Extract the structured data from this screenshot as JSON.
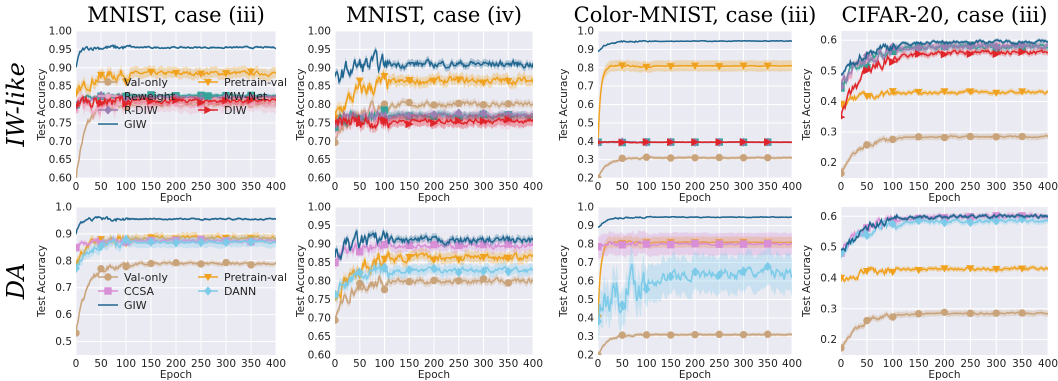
{
  "row_labels": [
    "IW-like",
    "DA"
  ],
  "column_titles": [
    "MNIST, case (iii)",
    "MNIST, case (iv)",
    "Color-MNIST, case (iii)",
    "CIFAR-20, case (iii)"
  ],
  "axis_labels": {
    "x": "Epoch",
    "y": "Test Accuracy"
  },
  "colors": {
    "Val-only": "#c9a37a",
    "Pretrain-val": "#f0a21e",
    "Reweight": "#f0a8c4",
    "MW-Net": "#35a39a",
    "R-DIW": "#9a7fb3",
    "DIW": "#e0252a",
    "GIW": "#1f6690",
    "CCSA": "#d98fd6",
    "DANN": "#7ccbe8"
  },
  "chart_data": [
    {
      "type": "line",
      "row": 0,
      "col": 0,
      "xlim": [
        0,
        400
      ],
      "ylim": [
        0.6,
        1.0
      ],
      "xticks": [
        0,
        50,
        100,
        150,
        200,
        250,
        300,
        350,
        400
      ],
      "yticks": [
        0.6,
        0.65,
        0.7,
        0.75,
        0.8,
        0.85,
        0.9,
        0.95,
        1.0
      ],
      "ytick_labels": [
        "0.60",
        "0.65",
        "0.70",
        "0.75",
        "0.80",
        "0.85",
        "0.90",
        "0.95",
        "1.00"
      ],
      "legend": {
        "placement": "bottom-center",
        "ncol": 2,
        "entries": [
          "Val-only",
          "Pretrain-val",
          "Reweight",
          "MW-Net",
          "R-DIW",
          "DIW",
          "GIW"
        ]
      },
      "series": [
        {
          "name": "Val-only",
          "final": 0.8,
          "start": 0.6,
          "rise": 40,
          "band": 0.008,
          "noise": 0.01
        },
        {
          "name": "Pretrain-val",
          "final": 0.885,
          "start": 0.82,
          "rise": 60,
          "band": 0.015,
          "noise": 0.012
        },
        {
          "name": "Reweight",
          "final": 0.8,
          "start": 0.78,
          "rise": 10,
          "band": 0.02,
          "noise": 0.015
        },
        {
          "name": "MW-Net",
          "final": 0.825,
          "start": 0.8,
          "rise": 40,
          "band": 0.005,
          "noise": 0.004
        },
        {
          "name": "R-DIW",
          "final": 0.82,
          "start": 0.8,
          "rise": 40,
          "band": 0.005,
          "noise": 0.005
        },
        {
          "name": "DIW",
          "final": 0.81,
          "start": 0.8,
          "rise": 10,
          "band": 0.01,
          "noise": 0.012
        },
        {
          "name": "GIW",
          "final": 0.955,
          "start": 0.9,
          "rise": 15,
          "band": 0.003,
          "noise": 0.005
        }
      ]
    },
    {
      "type": "line",
      "row": 0,
      "col": 1,
      "xlim": [
        0,
        400
      ],
      "ylim": [
        0.6,
        1.0
      ],
      "xticks": [
        0,
        50,
        100,
        150,
        200,
        250,
        300,
        350,
        400
      ],
      "yticks": [
        0.6,
        0.65,
        0.7,
        0.75,
        0.8,
        0.85,
        0.9,
        0.95,
        1.0
      ],
      "ytick_labels": [
        "0.60",
        "0.65",
        "0.70",
        "0.75",
        "0.80",
        "0.85",
        "0.90",
        "0.95",
        "1.00"
      ],
      "series": [
        {
          "name": "Val-only",
          "final": 0.8,
          "start": 0.7,
          "rise": 60,
          "band": 0.01,
          "noise": 0.015
        },
        {
          "name": "Pretrain-val",
          "final": 0.865,
          "start": 0.76,
          "rise": 90,
          "band": 0.015,
          "noise": 0.02
        },
        {
          "name": "Reweight",
          "final": 0.76,
          "start": 0.74,
          "rise": 30,
          "band": 0.02,
          "noise": 0.015
        },
        {
          "name": "MW-Net",
          "final": 0.77,
          "start": 0.74,
          "rise": 30,
          "band": 0.01,
          "noise": 0.012
        },
        {
          "name": "R-DIW",
          "final": 0.77,
          "start": 0.74,
          "rise": 30,
          "band": 0.01,
          "noise": 0.012
        },
        {
          "name": "DIW",
          "final": 0.755,
          "start": 0.74,
          "rise": 30,
          "band": 0.015,
          "noise": 0.015
        },
        {
          "name": "GIW",
          "final": 0.91,
          "start": 0.86,
          "rise": 50,
          "band": 0.01,
          "noise": 0.02
        }
      ]
    },
    {
      "type": "line",
      "row": 0,
      "col": 2,
      "xlim": [
        0,
        400
      ],
      "ylim": [
        0.2,
        1.0
      ],
      "xticks": [
        0,
        50,
        100,
        150,
        200,
        250,
        300,
        350,
        400
      ],
      "yticks": [
        0.2,
        0.3,
        0.4,
        0.5,
        0.6,
        0.7,
        0.8,
        0.9,
        1.0
      ],
      "ytick_labels": [
        "0.2",
        "0.3",
        "0.4",
        "0.5",
        "0.6",
        "0.7",
        "0.8",
        "0.9",
        "1.0"
      ],
      "series": [
        {
          "name": "Val-only",
          "final": 0.31,
          "start": 0.2,
          "rise": 40,
          "band": 0.01,
          "noise": 0.004
        },
        {
          "name": "Pretrain-val",
          "final": 0.81,
          "start": 0.4,
          "rise": 12,
          "band": 0.03,
          "noise": 0.005
        },
        {
          "name": "Reweight",
          "final": 0.395,
          "start": 0.395,
          "rise": 5,
          "band": 0.005,
          "noise": 0.002
        },
        {
          "name": "MW-Net",
          "final": 0.395,
          "start": 0.395,
          "rise": 5,
          "band": 0.005,
          "noise": 0.002
        },
        {
          "name": "R-DIW",
          "final": 0.395,
          "start": 0.395,
          "rise": 5,
          "band": 0.005,
          "noise": 0.002
        },
        {
          "name": "DIW",
          "final": 0.395,
          "start": 0.395,
          "rise": 5,
          "band": 0.005,
          "noise": 0.002
        },
        {
          "name": "GIW",
          "final": 0.945,
          "start": 0.89,
          "rise": 40,
          "band": 0.004,
          "noise": 0.004
        }
      ]
    },
    {
      "type": "line",
      "row": 0,
      "col": 3,
      "xlim": [
        0,
        400
      ],
      "ylim": [
        0.15,
        0.63
      ],
      "xticks": [
        0,
        50,
        100,
        150,
        200,
        250,
        300,
        350,
        400
      ],
      "yticks": [
        0.2,
        0.3,
        0.4,
        0.5,
        0.6
      ],
      "ytick_labels": [
        "0.2",
        "0.3",
        "0.4",
        "0.5",
        "0.6"
      ],
      "series": [
        {
          "name": "Val-only",
          "final": 0.285,
          "start": 0.17,
          "rise": 80,
          "band": 0.01,
          "noise": 0.006
        },
        {
          "name": "Pretrain-val",
          "final": 0.43,
          "start": 0.39,
          "rise": 100,
          "band": 0.008,
          "noise": 0.01
        },
        {
          "name": "Reweight",
          "final": 0.585,
          "start": 0.45,
          "rise": 100,
          "band": 0.01,
          "noise": 0.015
        },
        {
          "name": "MW-Net",
          "final": 0.58,
          "start": 0.45,
          "rise": 100,
          "band": 0.01,
          "noise": 0.015
        },
        {
          "name": "R-DIW",
          "final": 0.58,
          "start": 0.45,
          "rise": 100,
          "band": 0.01,
          "noise": 0.015
        },
        {
          "name": "DIW",
          "final": 0.56,
          "start": 0.35,
          "rise": 100,
          "band": 0.01,
          "noise": 0.015
        },
        {
          "name": "GIW",
          "final": 0.595,
          "start": 0.48,
          "rise": 100,
          "band": 0.006,
          "noise": 0.012
        }
      ]
    },
    {
      "type": "line",
      "row": 1,
      "col": 0,
      "xlim": [
        0,
        400
      ],
      "ylim": [
        0.45,
        1.0
      ],
      "xticks": [
        0,
        50,
        100,
        150,
        200,
        250,
        300,
        350,
        400
      ],
      "yticks": [
        0.5,
        0.6,
        0.7,
        0.8,
        0.9,
        1.0
      ],
      "ytick_labels": [
        "0.5",
        "0.6",
        "0.7",
        "0.8",
        "0.9",
        "1.0"
      ],
      "legend": {
        "placement": "bottom-center",
        "ncol": 2,
        "entries": [
          "Val-only",
          "Pretrain-val",
          "CCSA",
          "DANN",
          "GIW"
        ]
      },
      "series": [
        {
          "name": "Val-only",
          "final": 0.79,
          "start": 0.54,
          "rise": 50,
          "band": 0.01,
          "noise": 0.01
        },
        {
          "name": "Pretrain-val",
          "final": 0.885,
          "start": 0.8,
          "rise": 60,
          "band": 0.015,
          "noise": 0.015
        },
        {
          "name": "CCSA",
          "final": 0.875,
          "start": 0.85,
          "rise": 30,
          "band": 0.01,
          "noise": 0.01
        },
        {
          "name": "DANN",
          "final": 0.87,
          "start": 0.78,
          "rise": 60,
          "band": 0.02,
          "noise": 0.01
        },
        {
          "name": "GIW",
          "final": 0.955,
          "start": 0.9,
          "rise": 15,
          "band": 0.004,
          "noise": 0.006
        }
      ]
    },
    {
      "type": "line",
      "row": 1,
      "col": 1,
      "xlim": [
        0,
        400
      ],
      "ylim": [
        0.6,
        1.0
      ],
      "xticks": [
        0,
        50,
        100,
        150,
        200,
        250,
        300,
        350,
        400
      ],
      "yticks": [
        0.6,
        0.65,
        0.7,
        0.75,
        0.8,
        0.85,
        0.9,
        0.95,
        1.0
      ],
      "ytick_labels": [
        "0.60",
        "0.65",
        "0.70",
        "0.75",
        "0.80",
        "0.85",
        "0.90",
        "0.95",
        "1.00"
      ],
      "series": [
        {
          "name": "Val-only",
          "final": 0.8,
          "start": 0.7,
          "rise": 60,
          "band": 0.01,
          "noise": 0.015
        },
        {
          "name": "Pretrain-val",
          "final": 0.865,
          "start": 0.76,
          "rise": 90,
          "band": 0.015,
          "noise": 0.02
        },
        {
          "name": "CCSA",
          "final": 0.895,
          "start": 0.85,
          "rise": 40,
          "band": 0.015,
          "noise": 0.015
        },
        {
          "name": "DANN",
          "final": 0.83,
          "start": 0.76,
          "rise": 80,
          "band": 0.015,
          "noise": 0.015
        },
        {
          "name": "GIW",
          "final": 0.91,
          "start": 0.86,
          "rise": 50,
          "band": 0.01,
          "noise": 0.02
        }
      ]
    },
    {
      "type": "line",
      "row": 1,
      "col": 2,
      "xlim": [
        0,
        400
      ],
      "ylim": [
        0.2,
        1.0
      ],
      "xticks": [
        0,
        50,
        100,
        150,
        200,
        250,
        300,
        350,
        400
      ],
      "yticks": [
        0.2,
        0.3,
        0.4,
        0.5,
        0.6,
        0.7,
        0.8,
        0.9,
        1.0
      ],
      "ytick_labels": [
        "0.2",
        "0.3",
        "0.4",
        "0.5",
        "0.6",
        "0.7",
        "0.8",
        "0.9",
        "1.0"
      ],
      "series": [
        {
          "name": "Val-only",
          "final": 0.31,
          "start": 0.2,
          "rise": 40,
          "band": 0.01,
          "noise": 0.004
        },
        {
          "name": "Pretrain-val",
          "final": 0.81,
          "start": 0.4,
          "rise": 12,
          "band": 0.03,
          "noise": 0.005
        },
        {
          "name": "CCSA",
          "final": 0.8,
          "start": 0.78,
          "rise": 20,
          "band": 0.06,
          "noise": 0.01
        },
        {
          "name": "DANN",
          "final": 0.645,
          "start": 0.45,
          "rise": 150,
          "band": 0.1,
          "noise": 0.07
        },
        {
          "name": "GIW",
          "final": 0.945,
          "start": 0.89,
          "rise": 40,
          "band": 0.004,
          "noise": 0.004
        }
      ]
    },
    {
      "type": "line",
      "row": 1,
      "col": 3,
      "xlim": [
        0,
        400
      ],
      "ylim": [
        0.15,
        0.63
      ],
      "xticks": [
        0,
        50,
        100,
        150,
        200,
        250,
        300,
        350,
        400
      ],
      "yticks": [
        0.2,
        0.3,
        0.4,
        0.5,
        0.6
      ],
      "ytick_labels": [
        "0.2",
        "0.3",
        "0.4",
        "0.5",
        "0.6"
      ],
      "series": [
        {
          "name": "Val-only",
          "final": 0.285,
          "start": 0.17,
          "rise": 80,
          "band": 0.01,
          "noise": 0.006
        },
        {
          "name": "Pretrain-val",
          "final": 0.43,
          "start": 0.39,
          "rise": 100,
          "band": 0.008,
          "noise": 0.01
        },
        {
          "name": "CCSA",
          "final": 0.6,
          "start": 0.48,
          "rise": 100,
          "band": 0.01,
          "noise": 0.012
        },
        {
          "name": "DANN",
          "final": 0.585,
          "start": 0.48,
          "rise": 100,
          "band": 0.01,
          "noise": 0.012
        },
        {
          "name": "GIW",
          "final": 0.6,
          "start": 0.48,
          "rise": 100,
          "band": 0.006,
          "noise": 0.012
        }
      ]
    }
  ]
}
